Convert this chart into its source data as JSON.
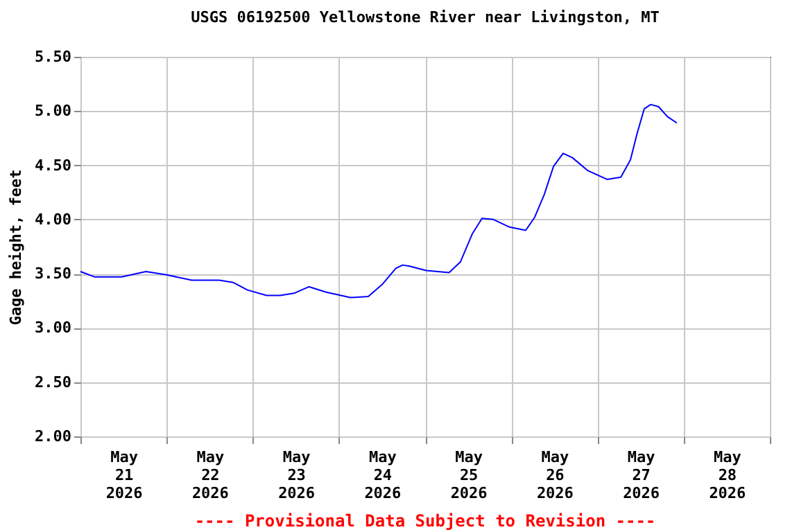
{
  "chart_data": {
    "type": "line",
    "title": "USGS 06192500 Yellowstone River near Livingston, MT",
    "ylabel": "Gage height, feet",
    "annotations": [
      "---- Provisional Data Subject to Revision ----"
    ],
    "x": [
      "2026-05-21T00:00",
      "2026-05-21T04:00",
      "2026-05-21T11:30",
      "2026-05-21T18:15",
      "2026-05-22T00:00",
      "2026-05-22T07:00",
      "2026-05-22T14:40",
      "2026-05-22T18:30",
      "2026-05-22T22:30",
      "2026-05-23T03:50",
      "2026-05-23T07:40",
      "2026-05-23T11:30",
      "2026-05-23T15:40",
      "2026-05-23T20:25",
      "2026-05-24T03:10",
      "2026-05-24T08:10",
      "2026-05-24T12:00",
      "2026-05-24T15:50",
      "2026-05-24T17:45",
      "2026-05-24T19:40",
      "2026-05-25T00:15",
      "2026-05-25T06:40",
      "2026-05-25T09:50",
      "2026-05-25T13:10",
      "2026-05-25T15:50",
      "2026-05-25T19:00",
      "2026-05-25T23:30",
      "2026-05-26T04:00",
      "2026-05-26T06:30",
      "2026-05-26T09:10",
      "2026-05-26T11:45",
      "2026-05-26T14:25",
      "2026-05-26T17:00",
      "2026-05-26T21:20",
      "2026-05-27T02:40",
      "2026-05-27T06:30",
      "2026-05-27T09:10",
      "2026-05-27T11:00",
      "2026-05-27T13:00",
      "2026-05-27T14:50",
      "2026-05-27T17:00",
      "2026-05-27T19:25",
      "2026-05-27T22:05"
    ],
    "series": [
      {
        "color": "#0000ff",
        "values": [
          3.52,
          3.47,
          3.47,
          3.52,
          3.49,
          3.44,
          3.44,
          3.42,
          3.35,
          3.3,
          3.3,
          3.32,
          3.38,
          3.33,
          3.28,
          3.29,
          3.4,
          3.55,
          3.58,
          3.57,
          3.53,
          3.51,
          3.61,
          3.87,
          4.01,
          4.0,
          3.93,
          3.9,
          4.02,
          4.23,
          4.49,
          4.61,
          4.57,
          4.45,
          4.37,
          4.39,
          4.55,
          4.79,
          5.02,
          5.06,
          5.04,
          4.95,
          4.89
        ]
      }
    ],
    "xlim": [
      "2026-05-21T00:00",
      "2026-05-29T00:00"
    ],
    "xticks": [
      {
        "value": "2026-05-21T00:00",
        "label": null
      },
      {
        "value": "2026-05-21T12:00",
        "label": "May\n21\n2026"
      },
      {
        "value": "2026-05-22T00:00",
        "label": null
      },
      {
        "value": "2026-05-22T12:00",
        "label": "May\n22\n2026"
      },
      {
        "value": "2026-05-23T00:00",
        "label": null
      },
      {
        "value": "2026-05-23T12:00",
        "label": "May\n23\n2026"
      },
      {
        "value": "2026-05-24T00:00",
        "label": null
      },
      {
        "value": "2026-05-24T12:00",
        "label": "May\n24\n2026"
      },
      {
        "value": "2026-05-25T00:00",
        "label": null
      },
      {
        "value": "2026-05-25T12:00",
        "label": "May\n25\n2026"
      },
      {
        "value": "2026-05-26T00:00",
        "label": null
      },
      {
        "value": "2026-05-26T12:00",
        "label": "May\n26\n2026"
      },
      {
        "value": "2026-05-27T00:00",
        "label": null
      },
      {
        "value": "2026-05-27T12:00",
        "label": "May\n27\n2026"
      },
      {
        "value": "2026-05-28T00:00",
        "label": null
      },
      {
        "value": "2026-05-28T12:00",
        "label": "May\n28\n2026"
      },
      {
        "value": "2026-05-29T00:00",
        "label": null
      }
    ],
    "ylim": [
      2.0,
      5.5
    ],
    "yticks": [
      {
        "value": 2.0,
        "label": "2.00"
      },
      {
        "value": 2.5,
        "label": "2.50"
      },
      {
        "value": 3.0,
        "label": "3.00"
      },
      {
        "value": 3.5,
        "label": "3.50"
      },
      {
        "value": 4.0,
        "label": "4.00"
      },
      {
        "value": 4.5,
        "label": "4.50"
      },
      {
        "value": 5.0,
        "label": "5.00"
      },
      {
        "value": 5.5,
        "label": "5.50"
      }
    ],
    "grid": true,
    "marker": "none",
    "line_style": "solid"
  }
}
